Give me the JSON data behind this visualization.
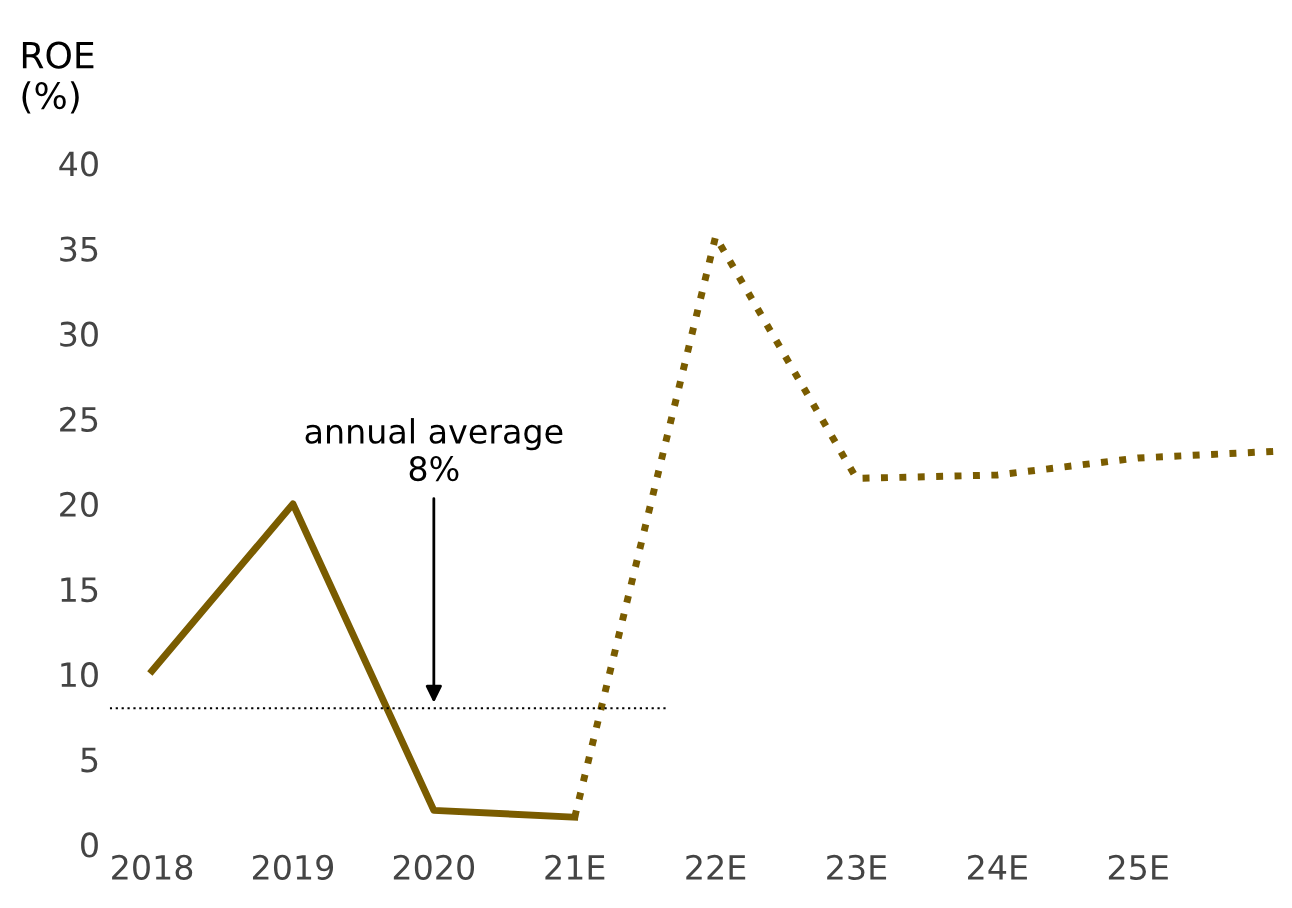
{
  "chart_data": {
    "type": "line",
    "ylabel": "ROE\n(%)",
    "categories": [
      "2018",
      "2019",
      "2020",
      "21E",
      "22E",
      "23E",
      "24E",
      "25E",
      null
    ],
    "series": [
      {
        "color": "#7a5c00",
        "line_style": "solid",
        "values": [
          10.2,
          20,
          2.0,
          1.6,
          null,
          null,
          null,
          null,
          null
        ]
      },
      {
        "color": "#7a5c00",
        "line_style": "dotted",
        "values": [
          null,
          null,
          null,
          1.6,
          35.7,
          21.5,
          21.7,
          22.7,
          23.1
        ]
      }
    ],
    "ylim": [
      0,
      40
    ],
    "yticks": [
      0,
      5,
      10,
      15,
      20,
      25,
      30,
      35,
      40
    ],
    "grid": false,
    "legend": false,
    "ref_lines": [
      {
        "axis": "y",
        "value": 8,
        "label": "annual average\n8%",
        "color": "#000000",
        "line_style": "dotted"
      }
    ]
  }
}
